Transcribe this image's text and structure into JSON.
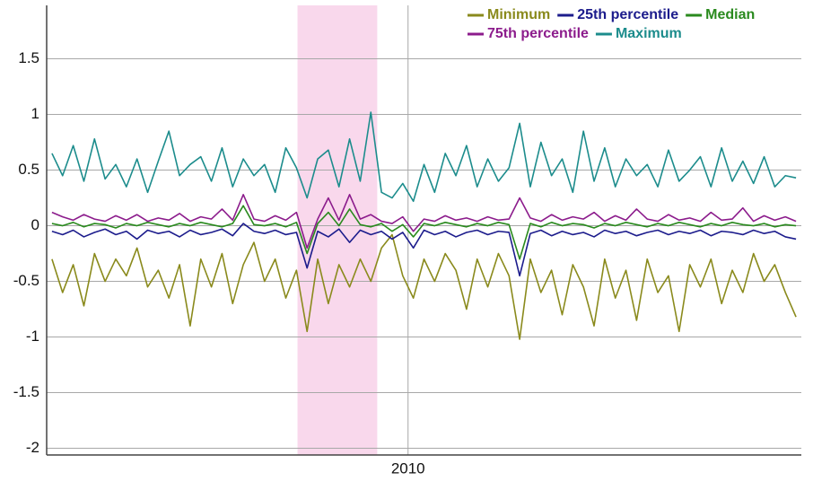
{
  "chart_data": {
    "type": "line",
    "x": [
      2003.3,
      2003.5,
      2003.7,
      2003.9,
      2004.1,
      2004.3,
      2004.5,
      2004.7,
      2004.9,
      2005.1,
      2005.3,
      2005.5,
      2005.7,
      2005.9,
      2006.1,
      2006.3,
      2006.5,
      2006.7,
      2006.9,
      2007.1,
      2007.3,
      2007.5,
      2007.7,
      2007.9,
      2008.1,
      2008.3,
      2008.5,
      2008.7,
      2008.9,
      2009.1,
      2009.3,
      2009.5,
      2009.7,
      2009.9,
      2010.1,
      2010.3,
      2010.5,
      2010.7,
      2010.9,
      2011.1,
      2011.3,
      2011.5,
      2011.7,
      2011.9,
      2012.1,
      2012.3,
      2012.5,
      2012.7,
      2012.9,
      2013.1,
      2013.3,
      2013.5,
      2013.7,
      2013.9,
      2014.1,
      2014.3,
      2014.5,
      2014.7,
      2014.9,
      2015.1,
      2015.3,
      2015.5,
      2015.7,
      2015.9,
      2016.1,
      2016.3,
      2016.5,
      2016.7,
      2016.9,
      2017.1,
      2017.3
    ],
    "series": [
      {
        "name": "Minimum",
        "color": "#8a8a1c",
        "values": [
          -0.3,
          -0.6,
          -0.35,
          -0.72,
          -0.25,
          -0.5,
          -0.3,
          -0.45,
          -0.2,
          -0.55,
          -0.4,
          -0.65,
          -0.35,
          -0.9,
          -0.3,
          -0.55,
          -0.25,
          -0.7,
          -0.35,
          -0.15,
          -0.5,
          -0.3,
          -0.65,
          -0.4,
          -0.95,
          -0.3,
          -0.7,
          -0.35,
          -0.55,
          -0.3,
          -0.5,
          -0.2,
          -0.08,
          -0.45,
          -0.65,
          -0.3,
          -0.5,
          -0.25,
          -0.4,
          -0.75,
          -0.3,
          -0.55,
          -0.25,
          -0.45,
          -1.02,
          -0.3,
          -0.6,
          -0.4,
          -0.8,
          -0.35,
          -0.55,
          -0.9,
          -0.3,
          -0.65,
          -0.4,
          -0.85,
          -0.3,
          -0.6,
          -0.45,
          -0.95,
          -0.35,
          -0.55,
          -0.3,
          -0.7,
          -0.4,
          -0.6,
          -0.25,
          -0.5,
          -0.35,
          -0.6,
          -0.82
        ]
      },
      {
        "name": "25th percentile",
        "color": "#1c1c8c",
        "values": [
          -0.05,
          -0.08,
          -0.04,
          -0.1,
          -0.06,
          -0.03,
          -0.08,
          -0.05,
          -0.12,
          -0.04,
          -0.07,
          -0.05,
          -0.1,
          -0.04,
          -0.08,
          -0.06,
          -0.03,
          -0.09,
          0.02,
          -0.05,
          -0.07,
          -0.04,
          -0.08,
          -0.06,
          -0.38,
          -0.05,
          -0.1,
          -0.03,
          -0.15,
          -0.04,
          -0.08,
          -0.05,
          -0.12,
          -0.06,
          -0.2,
          -0.04,
          -0.08,
          -0.05,
          -0.1,
          -0.06,
          -0.04,
          -0.08,
          -0.05,
          -0.06,
          -0.45,
          -0.07,
          -0.04,
          -0.09,
          -0.05,
          -0.08,
          -0.06,
          -0.1,
          -0.04,
          -0.07,
          -0.05,
          -0.09,
          -0.06,
          -0.04,
          -0.08,
          -0.05,
          -0.07,
          -0.04,
          -0.09,
          -0.05,
          -0.06,
          -0.08,
          -0.04,
          -0.07,
          -0.05,
          -0.1,
          -0.12
        ]
      },
      {
        "name": "Median",
        "color": "#2a8a1e",
        "values": [
          0.02,
          0,
          0.03,
          -0.01,
          0.02,
          0.01,
          -0.02,
          0.02,
          0,
          0.03,
          0.01,
          -0.01,
          0.02,
          0,
          0.03,
          0.01,
          -0.01,
          0.02,
          0.18,
          0.01,
          0,
          0.02,
          -0.01,
          0.03,
          -0.25,
          0.02,
          0.12,
          0,
          0.15,
          0.01,
          -0.01,
          0.02,
          -0.05,
          0.01,
          -0.1,
          0.02,
          0,
          0.03,
          0.01,
          -0.01,
          0.02,
          0,
          0.03,
          0.01,
          -0.3,
          0.02,
          -0.01,
          0.03,
          0,
          0.02,
          0.01,
          -0.02,
          0.02,
          0,
          0.03,
          0.01,
          -0.01,
          0.02,
          0,
          0.03,
          0.01,
          -0.01,
          0.02,
          0,
          0.03,
          0.01,
          0,
          0.02,
          -0.01,
          0.01,
          0
        ]
      },
      {
        "name": "75th percentile",
        "color": "#8c1c8c",
        "values": [
          0.12,
          0.08,
          0.05,
          0.1,
          0.06,
          0.04,
          0.09,
          0.05,
          0.1,
          0.04,
          0.07,
          0.05,
          0.11,
          0.04,
          0.08,
          0.06,
          0.15,
          0.05,
          0.28,
          0.06,
          0.04,
          0.09,
          0.05,
          0.12,
          -0.2,
          0.06,
          0.25,
          0.05,
          0.28,
          0.06,
          0.1,
          0.04,
          0.02,
          0.08,
          -0.05,
          0.06,
          0.04,
          0.09,
          0.05,
          0.07,
          0.04,
          0.08,
          0.05,
          0.06,
          0.25,
          0.07,
          0.04,
          0.1,
          0.05,
          0.08,
          0.06,
          0.12,
          0.04,
          0.09,
          0.05,
          0.15,
          0.06,
          0.04,
          0.1,
          0.05,
          0.07,
          0.04,
          0.12,
          0.05,
          0.06,
          0.16,
          0.04,
          0.09,
          0.05,
          0.08,
          0.04
        ]
      },
      {
        "name": "Maximum",
        "color": "#1c8c8c",
        "values": [
          0.65,
          0.45,
          0.72,
          0.4,
          0.78,
          0.42,
          0.55,
          0.35,
          0.6,
          0.3,
          0.58,
          0.85,
          0.45,
          0.55,
          0.62,
          0.4,
          0.7,
          0.35,
          0.6,
          0.45,
          0.55,
          0.3,
          0.7,
          0.52,
          0.25,
          0.6,
          0.68,
          0.35,
          0.78,
          0.4,
          1.02,
          0.3,
          0.25,
          0.38,
          0.22,
          0.55,
          0.3,
          0.65,
          0.45,
          0.72,
          0.35,
          0.6,
          0.4,
          0.52,
          0.92,
          0.35,
          0.75,
          0.45,
          0.6,
          0.3,
          0.85,
          0.4,
          0.7,
          0.35,
          0.6,
          0.45,
          0.55,
          0.35,
          0.68,
          0.4,
          0.5,
          0.62,
          0.35,
          0.7,
          0.4,
          0.58,
          0.38,
          0.62,
          0.35,
          0.45,
          0.43
        ]
      }
    ],
    "xlim": [
      2003.2,
      2017.4
    ],
    "xticks": [
      2010
    ],
    "ylim": [
      -2.06,
      1.98
    ],
    "yticks": [
      -2,
      -1.5,
      -1,
      -0.5,
      0,
      0.5,
      1,
      1.5
    ],
    "grid": true,
    "shaded_span": [
      2007.92,
      2009.42
    ],
    "shaded_color": "#f9d8ec",
    "legend": "top-right"
  }
}
